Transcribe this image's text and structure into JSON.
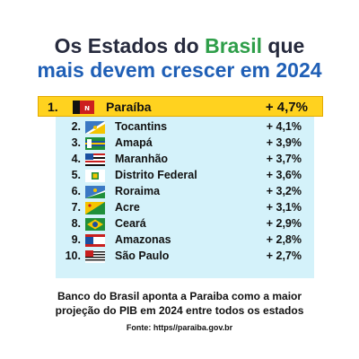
{
  "title": {
    "line1_a": "Os Estados do ",
    "line1_b": "Brasil",
    "line1_c": " que",
    "line2": "mais devem crescer em 2024"
  },
  "colors": {
    "title_blue": "#1f5fb6",
    "title_green": "#2e9e49",
    "highlight_yellow": "#ffd21f",
    "panel_light_blue": "#d4f2fa"
  },
  "chart_data": {
    "type": "table",
    "columns": [
      "rank",
      "state",
      "growth"
    ],
    "rows": [
      {
        "rank": "1.",
        "state": "Paraíba",
        "value": "+ 4,7%",
        "flag_icon": "paraiba-flag-icon"
      },
      {
        "rank": "2.",
        "state": "Tocantins",
        "value": "+ 4,1%",
        "flag_icon": "tocantins-flag-icon"
      },
      {
        "rank": "3.",
        "state": "Amapá",
        "value": "+ 3,9%",
        "flag_icon": "amapa-flag-icon"
      },
      {
        "rank": "4.",
        "state": "Maranhão",
        "value": "+ 3,7%",
        "flag_icon": "maranhao-flag-icon"
      },
      {
        "rank": "5.",
        "state": "Distrito Federal",
        "value": "+ 3,6%",
        "flag_icon": "distrito-federal-flag-icon"
      },
      {
        "rank": "6.",
        "state": "Roraima",
        "value": "+ 3,2%",
        "flag_icon": "roraima-flag-icon"
      },
      {
        "rank": "7.",
        "state": "Acre",
        "value": "+ 3,1%",
        "flag_icon": "acre-flag-icon"
      },
      {
        "rank": "8.",
        "state": "Ceará",
        "value": "+ 2,9%",
        "flag_icon": "ceara-flag-icon"
      },
      {
        "rank": "9.",
        "state": "Amazonas",
        "value": "+ 2,8%",
        "flag_icon": "amazonas-flag-icon"
      },
      {
        "rank": "10.",
        "state": "São Paulo",
        "value": "+ 2,7%",
        "flag_icon": "sao-paulo-flag-icon"
      }
    ]
  },
  "caption": {
    "line1": "Banco do Brasil aponta a Paraiba como a maior",
    "line2": "projeção do PIB em 2024 entre todos os estados"
  },
  "source": "Fonte: https//paraiba.gov.br"
}
